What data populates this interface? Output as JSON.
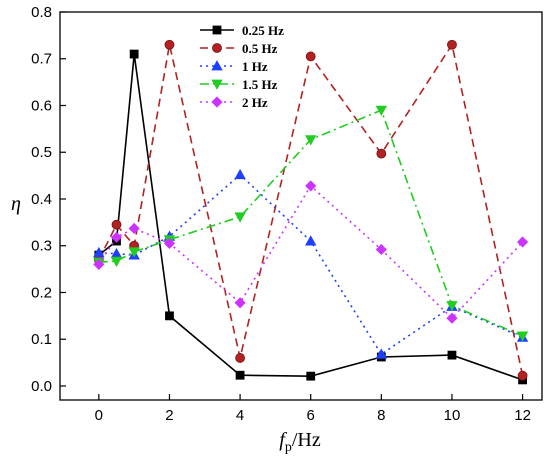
{
  "chart_data": {
    "type": "line",
    "xlabel_main": "f",
    "xlabel_sub": "p",
    "xlabel_unit": "/Hz",
    "ylabel": "η",
    "xlim": [
      -1.1,
      12.55
    ],
    "ylim": [
      -0.03,
      0.8
    ],
    "xticks": [
      0,
      2,
      4,
      6,
      8,
      10,
      12
    ],
    "yticks": [
      0.0,
      0.1,
      0.2,
      0.3,
      0.4,
      0.5,
      0.6,
      0.7,
      0.8
    ],
    "grid": false,
    "legend_position": "top-inside-left",
    "series": [
      {
        "name": "0.25 Hz",
        "color": "#000000",
        "marker": "square",
        "line_style": "solid",
        "x": [
          0,
          0.5,
          1,
          2,
          4,
          6,
          8,
          10,
          12
        ],
        "y": [
          0.28,
          0.31,
          0.71,
          0.15,
          0.023,
          0.021,
          0.062,
          0.066,
          0.013
        ]
      },
      {
        "name": "0.5 Hz",
        "color": "#b22222",
        "marker": "circle",
        "line_style": "dashed",
        "x": [
          0,
          0.5,
          1,
          2,
          4,
          6,
          8,
          10,
          12
        ],
        "y": [
          0.27,
          0.345,
          0.3,
          0.73,
          0.06,
          0.705,
          0.497,
          0.73,
          0.022
        ]
      },
      {
        "name": "1 Hz",
        "color": "#1f3fff",
        "marker": "triangle-up",
        "line_style": "dotted",
        "x": [
          0,
          0.5,
          1,
          2,
          4,
          6,
          8,
          10,
          12
        ],
        "y": [
          0.285,
          0.283,
          0.28,
          0.32,
          0.452,
          0.31,
          0.068,
          0.17,
          0.104
        ]
      },
      {
        "name": "1.5 Hz",
        "color": "#22cc22",
        "marker": "triangle-down",
        "line_style": "dashdot",
        "x": [
          0,
          0.5,
          1,
          2,
          4,
          6,
          8,
          10,
          12
        ],
        "y": [
          0.265,
          0.267,
          0.287,
          0.313,
          0.362,
          0.527,
          0.59,
          0.172,
          0.107
        ]
      },
      {
        "name": "2 Hz",
        "color": "#cc33ff",
        "marker": "diamond",
        "line_style": "dotted",
        "x": [
          0,
          0.5,
          1,
          2,
          4,
          6,
          8,
          10,
          12
        ],
        "y": [
          0.26,
          0.318,
          0.337,
          0.305,
          0.178,
          0.428,
          0.292,
          0.145,
          0.308
        ]
      }
    ]
  }
}
